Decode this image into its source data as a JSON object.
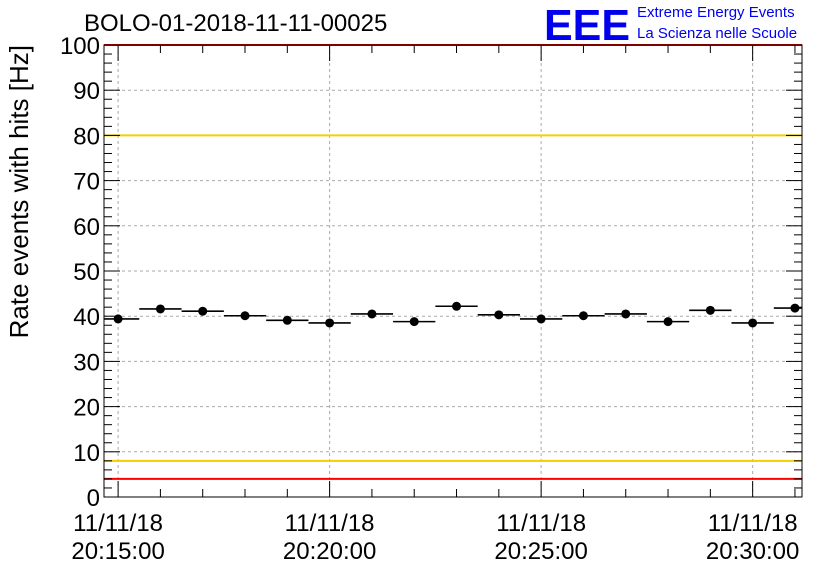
{
  "header": {
    "title": "BOLO-01-2018-11-11-00025",
    "logo_text": "EEE",
    "logo_line1": "Extreme Energy Events",
    "logo_line2": "La Scienza nelle Scuole"
  },
  "colors": {
    "logo": "#0000ee",
    "red_line": "#ff0000",
    "yellow_line": "#f0d000",
    "grid": "#aaaaaa",
    "points": "#000000"
  },
  "chart_data": {
    "type": "scatter",
    "title": "BOLO-01-2018-11-11-00025",
    "ylabel": "Rate events with hits [Hz]",
    "xlabel": "",
    "ylim": [
      0,
      100
    ],
    "yticks": [
      0,
      10,
      20,
      30,
      40,
      50,
      60,
      70,
      80,
      90,
      100
    ],
    "xlim": [
      "20:14:40",
      "20:31:10"
    ],
    "xticks": [
      {
        "time": "20:15:00",
        "label_date": "11/11/18",
        "label_time": "20:15:00"
      },
      {
        "time": "20:20:00",
        "label_date": "11/11/18",
        "label_time": "20:20:00"
      },
      {
        "time": "20:25:00",
        "label_date": "11/11/18",
        "label_time": "20:25:00"
      },
      {
        "time": "20:30:00",
        "label_date": "11/11/18",
        "label_time": "20:30:00"
      }
    ],
    "grid": true,
    "bin_width_s": 60,
    "points": [
      {
        "x": "20:15:00",
        "y": 39.4
      },
      {
        "x": "20:16:00",
        "y": 41.6
      },
      {
        "x": "20:17:00",
        "y": 41.1
      },
      {
        "x": "20:18:00",
        "y": 40.1
      },
      {
        "x": "20:19:00",
        "y": 39.1
      },
      {
        "x": "20:20:00",
        "y": 38.5
      },
      {
        "x": "20:21:00",
        "y": 40.5
      },
      {
        "x": "20:22:00",
        "y": 38.8
      },
      {
        "x": "20:23:00",
        "y": 42.2
      },
      {
        "x": "20:24:00",
        "y": 40.3
      },
      {
        "x": "20:25:00",
        "y": 39.4
      },
      {
        "x": "20:26:00",
        "y": 40.1
      },
      {
        "x": "20:27:00",
        "y": 40.5
      },
      {
        "x": "20:28:00",
        "y": 38.8
      },
      {
        "x": "20:29:00",
        "y": 41.3
      },
      {
        "x": "20:30:00",
        "y": 38.5
      },
      {
        "x": "20:31:00",
        "y": 41.8
      }
    ],
    "reference_lines": [
      {
        "y": 100,
        "color": "red"
      },
      {
        "y": 80,
        "color": "yellow"
      },
      {
        "y": 8,
        "color": "yellow"
      },
      {
        "y": 4,
        "color": "red"
      }
    ]
  }
}
